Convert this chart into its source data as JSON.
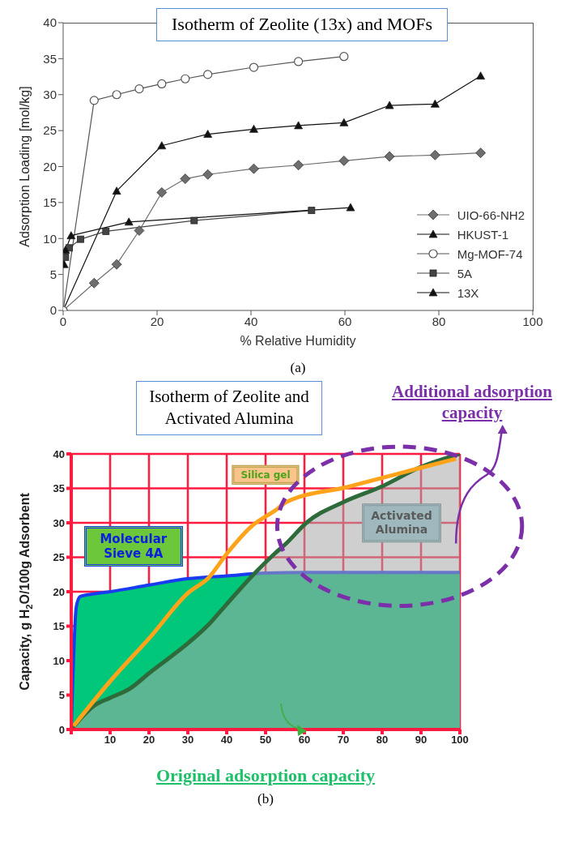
{
  "chart_data": [
    {
      "type": "line",
      "title": "Isotherm of Zeolite (13x) and MOFs",
      "xlabel": "% Relative Humidity",
      "ylabel": "Adsorption Loading [mol/kg]",
      "xlim": [
        0,
        100
      ],
      "xticks": [
        0,
        20,
        40,
        60,
        80,
        100
      ],
      "ylim": [
        0,
        40
      ],
      "yticks": [
        0,
        5,
        10,
        15,
        20,
        25,
        30,
        35,
        40
      ],
      "grid": false,
      "legend": "bottom right",
      "annotations": [
        "(a)"
      ],
      "series": [
        {
          "name": "UIO-66-NH2",
          "color": "#6e6e6e",
          "marker": "diamond",
          "x": [
            0,
            6.6,
            11.4,
            16.2,
            21,
            26,
            30.8,
            40.6,
            50.1,
            59.8,
            69.5,
            79.2,
            88.9
          ],
          "values": [
            0,
            3.8,
            6.4,
            11.1,
            16.4,
            18.3,
            18.9,
            19.7,
            20.2,
            20.8,
            21.4,
            21.6,
            21.9
          ]
        },
        {
          "name": "HKUST-1",
          "color": "#111111",
          "marker": "triangle",
          "x": [
            0,
            11.4,
            21,
            30.8,
            40.6,
            50.1,
            59.8,
            69.5,
            79.2,
            88.9
          ],
          "values": [
            0,
            16.6,
            22.9,
            24.5,
            25.2,
            25.7,
            26.1,
            28.5,
            28.7,
            32.6
          ]
        },
        {
          "name": "Mg-MOF-74",
          "color": "#555555",
          "marker": "circle",
          "x": [
            0,
            6.6,
            11.4,
            16.2,
            21,
            26,
            30.8,
            40.6,
            50.1,
            59.8
          ],
          "values": [
            0,
            29.2,
            30.0,
            30.8,
            31.5,
            32.2,
            32.8,
            33.8,
            34.6,
            35.3
          ]
        },
        {
          "name": "5A",
          "color": "#444444",
          "marker": "square",
          "x": [
            0.5,
            1.3,
            3.7,
            9.1,
            27.9,
            52.9
          ],
          "values": [
            7.4,
            8.7,
            9.9,
            11.0,
            12.5,
            13.9
          ]
        },
        {
          "name": "13X",
          "color": "#111111",
          "marker": "triangle",
          "x": [
            0.2,
            0.5,
            1.7,
            14,
            61.2
          ],
          "values": [
            6.4,
            8.4,
            10.4,
            12.3,
            14.3
          ]
        }
      ]
    },
    {
      "type": "line",
      "title": "Isotherm of Zeolite and Activated Alumina",
      "ylabel": "Capacity,  g H$_{2}$O/100g  Adsorbent",
      "xlim": [
        0,
        100
      ],
      "xticks": [
        {
          "value": 0,
          "label": null
        },
        10,
        20,
        30,
        40,
        50,
        60,
        70,
        80,
        90,
        100
      ],
      "ylim": [
        0,
        40
      ],
      "yticks": [
        0,
        5,
        10,
        15,
        20,
        25,
        30,
        35,
        40
      ],
      "grid": true,
      "legend": false,
      "annotations": [
        "Additional adsorption capacity",
        "Original adsorption capacity",
        "(b)"
      ],
      "series": [
        {
          "name": "Molecular Sieve 4A",
          "type": "area",
          "color": "#00c77a",
          "x": [
            0,
            1.3,
            2.3,
            6,
            10,
            20.3,
            30.2,
            40,
            50,
            60,
            70,
            80,
            90,
            100
          ],
          "values": [
            0,
            17.8,
            19.3,
            19.7,
            20,
            21,
            21.9,
            22.3,
            22.7,
            22.8,
            22.8,
            22.8,
            22.8,
            22.8
          ]
        },
        {
          "name": "Silica gel",
          "type": "line",
          "color": "#ffa31a",
          "x": [
            0.6,
            10,
            20.3,
            30.2,
            35.3,
            40,
            46.2,
            53,
            55.3,
            71,
            84.6,
            99
          ],
          "values": [
            0.5,
            7,
            13.4,
            19.9,
            22,
            25.5,
            29.4,
            32,
            33,
            35.2,
            37.2,
            39.3
          ]
        },
        {
          "name": "Activated Alumina",
          "type": "area",
          "color": "#2e6b3a",
          "x": [
            0,
            6,
            10,
            15,
            20.3,
            30.2,
            35.3,
            40,
            46.9,
            52.3,
            55.3,
            60.5,
            70,
            80,
            89.5,
            100
          ],
          "values": [
            0,
            3.5,
            4.6,
            5.9,
            8.3,
            12.6,
            15.2,
            18.2,
            22.5,
            25.5,
            27,
            30,
            33,
            35.3,
            38,
            40
          ]
        }
      ]
    }
  ]
}
